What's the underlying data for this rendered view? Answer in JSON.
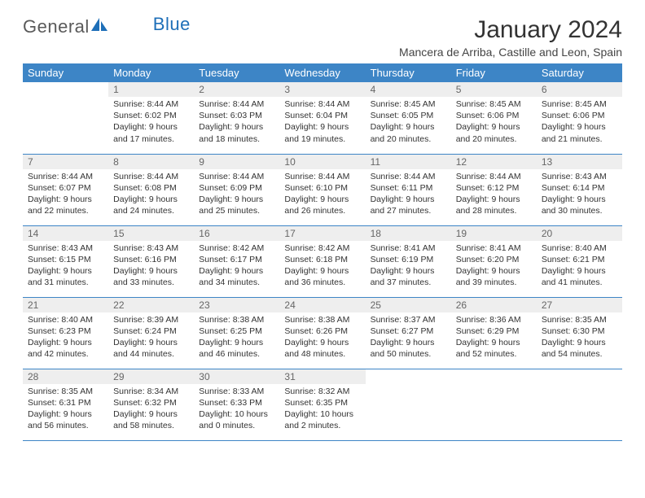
{
  "brand": {
    "part1": "General",
    "part2": "Blue"
  },
  "title": "January 2024",
  "location": "Mancera de Arriba, Castille and Leon, Spain",
  "colors": {
    "header_bg": "#3d85c6",
    "header_text": "#ffffff",
    "daynum_bg": "#eeeeee",
    "daynum_text": "#666666",
    "border": "#3d85c6",
    "body_text": "#333333",
    "brand_gray": "#5a5a5a",
    "brand_blue": "#1e6fb8"
  },
  "weekdays": [
    "Sunday",
    "Monday",
    "Tuesday",
    "Wednesday",
    "Thursday",
    "Friday",
    "Saturday"
  ],
  "weeks": [
    [
      null,
      {
        "d": "1",
        "sr": "Sunrise: 8:44 AM",
        "ss": "Sunset: 6:02 PM",
        "dl1": "Daylight: 9 hours",
        "dl2": "and 17 minutes."
      },
      {
        "d": "2",
        "sr": "Sunrise: 8:44 AM",
        "ss": "Sunset: 6:03 PM",
        "dl1": "Daylight: 9 hours",
        "dl2": "and 18 minutes."
      },
      {
        "d": "3",
        "sr": "Sunrise: 8:44 AM",
        "ss": "Sunset: 6:04 PM",
        "dl1": "Daylight: 9 hours",
        "dl2": "and 19 minutes."
      },
      {
        "d": "4",
        "sr": "Sunrise: 8:45 AM",
        "ss": "Sunset: 6:05 PM",
        "dl1": "Daylight: 9 hours",
        "dl2": "and 20 minutes."
      },
      {
        "d": "5",
        "sr": "Sunrise: 8:45 AM",
        "ss": "Sunset: 6:06 PM",
        "dl1": "Daylight: 9 hours",
        "dl2": "and 20 minutes."
      },
      {
        "d": "6",
        "sr": "Sunrise: 8:45 AM",
        "ss": "Sunset: 6:06 PM",
        "dl1": "Daylight: 9 hours",
        "dl2": "and 21 minutes."
      }
    ],
    [
      {
        "d": "7",
        "sr": "Sunrise: 8:44 AM",
        "ss": "Sunset: 6:07 PM",
        "dl1": "Daylight: 9 hours",
        "dl2": "and 22 minutes."
      },
      {
        "d": "8",
        "sr": "Sunrise: 8:44 AM",
        "ss": "Sunset: 6:08 PM",
        "dl1": "Daylight: 9 hours",
        "dl2": "and 24 minutes."
      },
      {
        "d": "9",
        "sr": "Sunrise: 8:44 AM",
        "ss": "Sunset: 6:09 PM",
        "dl1": "Daylight: 9 hours",
        "dl2": "and 25 minutes."
      },
      {
        "d": "10",
        "sr": "Sunrise: 8:44 AM",
        "ss": "Sunset: 6:10 PM",
        "dl1": "Daylight: 9 hours",
        "dl2": "and 26 minutes."
      },
      {
        "d": "11",
        "sr": "Sunrise: 8:44 AM",
        "ss": "Sunset: 6:11 PM",
        "dl1": "Daylight: 9 hours",
        "dl2": "and 27 minutes."
      },
      {
        "d": "12",
        "sr": "Sunrise: 8:44 AM",
        "ss": "Sunset: 6:12 PM",
        "dl1": "Daylight: 9 hours",
        "dl2": "and 28 minutes."
      },
      {
        "d": "13",
        "sr": "Sunrise: 8:43 AM",
        "ss": "Sunset: 6:14 PM",
        "dl1": "Daylight: 9 hours",
        "dl2": "and 30 minutes."
      }
    ],
    [
      {
        "d": "14",
        "sr": "Sunrise: 8:43 AM",
        "ss": "Sunset: 6:15 PM",
        "dl1": "Daylight: 9 hours",
        "dl2": "and 31 minutes."
      },
      {
        "d": "15",
        "sr": "Sunrise: 8:43 AM",
        "ss": "Sunset: 6:16 PM",
        "dl1": "Daylight: 9 hours",
        "dl2": "and 33 minutes."
      },
      {
        "d": "16",
        "sr": "Sunrise: 8:42 AM",
        "ss": "Sunset: 6:17 PM",
        "dl1": "Daylight: 9 hours",
        "dl2": "and 34 minutes."
      },
      {
        "d": "17",
        "sr": "Sunrise: 8:42 AM",
        "ss": "Sunset: 6:18 PM",
        "dl1": "Daylight: 9 hours",
        "dl2": "and 36 minutes."
      },
      {
        "d": "18",
        "sr": "Sunrise: 8:41 AM",
        "ss": "Sunset: 6:19 PM",
        "dl1": "Daylight: 9 hours",
        "dl2": "and 37 minutes."
      },
      {
        "d": "19",
        "sr": "Sunrise: 8:41 AM",
        "ss": "Sunset: 6:20 PM",
        "dl1": "Daylight: 9 hours",
        "dl2": "and 39 minutes."
      },
      {
        "d": "20",
        "sr": "Sunrise: 8:40 AM",
        "ss": "Sunset: 6:21 PM",
        "dl1": "Daylight: 9 hours",
        "dl2": "and 41 minutes."
      }
    ],
    [
      {
        "d": "21",
        "sr": "Sunrise: 8:40 AM",
        "ss": "Sunset: 6:23 PM",
        "dl1": "Daylight: 9 hours",
        "dl2": "and 42 minutes."
      },
      {
        "d": "22",
        "sr": "Sunrise: 8:39 AM",
        "ss": "Sunset: 6:24 PM",
        "dl1": "Daylight: 9 hours",
        "dl2": "and 44 minutes."
      },
      {
        "d": "23",
        "sr": "Sunrise: 8:38 AM",
        "ss": "Sunset: 6:25 PM",
        "dl1": "Daylight: 9 hours",
        "dl2": "and 46 minutes."
      },
      {
        "d": "24",
        "sr": "Sunrise: 8:38 AM",
        "ss": "Sunset: 6:26 PM",
        "dl1": "Daylight: 9 hours",
        "dl2": "and 48 minutes."
      },
      {
        "d": "25",
        "sr": "Sunrise: 8:37 AM",
        "ss": "Sunset: 6:27 PM",
        "dl1": "Daylight: 9 hours",
        "dl2": "and 50 minutes."
      },
      {
        "d": "26",
        "sr": "Sunrise: 8:36 AM",
        "ss": "Sunset: 6:29 PM",
        "dl1": "Daylight: 9 hours",
        "dl2": "and 52 minutes."
      },
      {
        "d": "27",
        "sr": "Sunrise: 8:35 AM",
        "ss": "Sunset: 6:30 PM",
        "dl1": "Daylight: 9 hours",
        "dl2": "and 54 minutes."
      }
    ],
    [
      {
        "d": "28",
        "sr": "Sunrise: 8:35 AM",
        "ss": "Sunset: 6:31 PM",
        "dl1": "Daylight: 9 hours",
        "dl2": "and 56 minutes."
      },
      {
        "d": "29",
        "sr": "Sunrise: 8:34 AM",
        "ss": "Sunset: 6:32 PM",
        "dl1": "Daylight: 9 hours",
        "dl2": "and 58 minutes."
      },
      {
        "d": "30",
        "sr": "Sunrise: 8:33 AM",
        "ss": "Sunset: 6:33 PM",
        "dl1": "Daylight: 10 hours",
        "dl2": "and 0 minutes."
      },
      {
        "d": "31",
        "sr": "Sunrise: 8:32 AM",
        "ss": "Sunset: 6:35 PM",
        "dl1": "Daylight: 10 hours",
        "dl2": "and 2 minutes."
      },
      null,
      null,
      null
    ]
  ]
}
